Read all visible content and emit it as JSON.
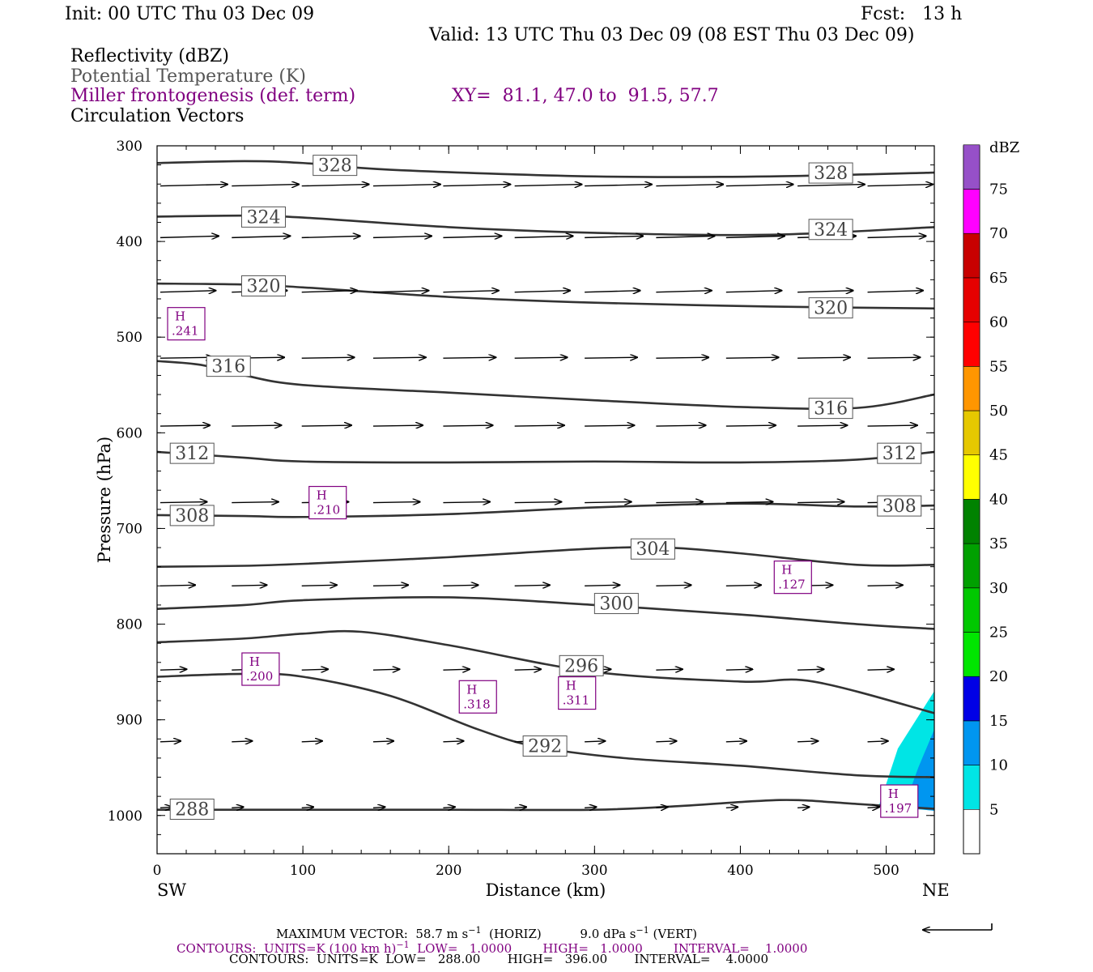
{
  "header": {
    "init": "Init: 00 UTC Thu 03 Dec 09",
    "fcst": "Fcst:   13 h",
    "valid": "Valid: 13 UTC Thu 03 Dec 09 (08 EST Thu 03 Dec 09)",
    "field1": "Reflectivity (dBZ)",
    "field2": "Potential Temperature (K)",
    "field3": "Miller frontogenesis (def. term)",
    "xy": "XY=  81.1, 47.0 to  91.5, 57.7",
    "field4": "Circulation Vectors"
  },
  "colors": {
    "theta": "#333333",
    "fronto": "#800080",
    "vectors": "#000000",
    "colorbar": [
      "#00e5e5",
      "#0096f0",
      "#0000e6",
      "#00e600",
      "#00c800",
      "#00a000",
      "#008200",
      "#ffff00",
      "#e6c800",
      "#ff9600",
      "#ff0000",
      "#e60000",
      "#c80000",
      "#ff00ff",
      "#9650c8"
    ]
  },
  "chart_data": {
    "type": "line",
    "title": "",
    "xlabel": "Distance (km)",
    "ylabel": "Pressure (hPa)",
    "xlim": [
      0,
      533
    ],
    "ylim": [
      1040,
      300
    ],
    "x_ticks": [
      "0",
      "100",
      "200",
      "300",
      "400",
      "500"
    ],
    "y_ticks": [
      "300",
      "400",
      "500",
      "600",
      "700",
      "800",
      "900",
      "1000"
    ],
    "x_end_labels": {
      "left": "SW",
      "right": "NE"
    },
    "theta_contours": [
      {
        "label": "328",
        "x": [
          0,
          60,
          100,
          160,
          300,
          420,
          533
        ],
        "p": [
          318,
          316,
          318,
          325,
          332,
          332,
          328
        ],
        "labels_at": [
          [
            122,
            320
          ],
          [
            462,
            328
          ]
        ]
      },
      {
        "label": "324",
        "x": [
          0,
          60,
          100,
          200,
          300,
          420,
          533
        ],
        "p": [
          374,
          373,
          375,
          385,
          391,
          393,
          385
        ],
        "labels_at": [
          [
            73,
            374
          ],
          [
            462,
            387
          ]
        ]
      },
      {
        "label": "320",
        "x": [
          0,
          60,
          100,
          200,
          300,
          420,
          533
        ],
        "p": [
          444,
          445,
          448,
          458,
          464,
          468,
          470
        ],
        "labels_at": [
          [
            73,
            446
          ],
          [
            462,
            469
          ]
        ]
      },
      {
        "label": "316",
        "x": [
          0,
          30,
          60,
          100,
          200,
          300,
          400,
          480,
          533
        ],
        "p": [
          525,
          529,
          540,
          550,
          558,
          566,
          573,
          574,
          560
        ],
        "labels_at": [
          [
            49,
            530
          ],
          [
            462,
            574
          ]
        ]
      },
      {
        "label": "312",
        "x": [
          0,
          60,
          100,
          200,
          300,
          400,
          480,
          533
        ],
        "p": [
          620,
          626,
          630,
          631,
          630,
          631,
          628,
          620
        ],
        "labels_at": [
          [
            24,
            621
          ],
          [
            509,
            621
          ]
        ]
      },
      {
        "label": "308",
        "x": [
          0,
          60,
          100,
          200,
          300,
          400,
          480,
          533
        ],
        "p": [
          686,
          687,
          688,
          685,
          678,
          674,
          677,
          676
        ],
        "labels_at": [
          [
            24,
            686
          ],
          [
            509,
            676
          ]
        ]
      },
      {
        "label": "304",
        "x": [
          0,
          60,
          100,
          200,
          300,
          350,
          400,
          480,
          533
        ],
        "p": [
          740,
          739,
          737,
          730,
          721,
          720,
          726,
          738,
          738
        ],
        "labels_at": [
          [
            340,
            721
          ]
        ]
      },
      {
        "label": "300",
        "x": [
          0,
          60,
          100,
          200,
          300,
          400,
          480,
          533
        ],
        "p": [
          784,
          780,
          775,
          772,
          780,
          790,
          800,
          805
        ],
        "labels_at": [
          [
            315,
            778
          ]
        ]
      },
      {
        "label": "296",
        "x": [
          0,
          60,
          100,
          140,
          200,
          300,
          400,
          450,
          533
        ],
        "p": [
          819,
          815,
          810,
          808,
          822,
          850,
          860,
          860,
          893
        ],
        "labels_at": [
          [
            291,
            843
          ]
        ]
      },
      {
        "label": "292",
        "x": [
          0,
          60,
          100,
          160,
          220,
          260,
          320,
          400,
          480,
          533
        ],
        "p": [
          855,
          852,
          855,
          875,
          910,
          928,
          940,
          948,
          958,
          960
        ],
        "labels_at": [
          [
            266,
            927
          ]
        ]
      },
      {
        "label": "288",
        "x": [
          0,
          60,
          100,
          200,
          300,
          360,
          410,
          440,
          480,
          533
        ],
        "p": [
          994,
          994,
          994,
          994,
          994,
          990,
          985,
          984,
          988,
          993
        ],
        "labels_at": [
          [
            24,
            993
          ]
        ]
      }
    ],
    "vectors_rows": [
      {
        "p": 342,
        "x": [
          0,
          49,
          97,
          146,
          194,
          243,
          291,
          340,
          388,
          437,
          485,
          533
        ],
        "u": 46
      },
      {
        "p": 396,
        "x": [
          0,
          49,
          97,
          146,
          194,
          243,
          291,
          340,
          388,
          437,
          485,
          533
        ],
        "u": 40
      },
      {
        "p": 453,
        "x": [
          0,
          49,
          97,
          146,
          194,
          243,
          291,
          340,
          388,
          437,
          485,
          533
        ],
        "u": 38
      },
      {
        "p": 522,
        "x": [
          0,
          49,
          97,
          146,
          194,
          243,
          291,
          340,
          388,
          437,
          485,
          533
        ],
        "u": 36
      },
      {
        "p": 593,
        "x": [
          0,
          49,
          97,
          146,
          194,
          243,
          291,
          340,
          388,
          437,
          485,
          533
        ],
        "u": 34
      },
      {
        "p": 673,
        "x": [
          0,
          49,
          97,
          146,
          194,
          243,
          291,
          340,
          388,
          437,
          485,
          533
        ],
        "u": 32
      },
      {
        "p": 760,
        "x": [
          0,
          49,
          97,
          146,
          194,
          243,
          291,
          340,
          388,
          437,
          485,
          533
        ],
        "u": 24
      },
      {
        "p": 848,
        "x": [
          0,
          49,
          97,
          146,
          194,
          243,
          291,
          340,
          388,
          437,
          485,
          533
        ],
        "u": 18
      },
      {
        "p": 923,
        "x": [
          0,
          49,
          97,
          146,
          194,
          243,
          291,
          340,
          388,
          437,
          485,
          533
        ],
        "u": 14
      },
      {
        "p": 992,
        "x": [
          0,
          49,
          97,
          146,
          194,
          243,
          291,
          340,
          388,
          437,
          485,
          533
        ],
        "u": 8
      }
    ],
    "fronto_maxima": [
      {
        "x": 20,
        "p": 486,
        "label": "H",
        "value": ".241"
      },
      {
        "x": 117,
        "p": 673,
        "label": "H",
        "value": ".210"
      },
      {
        "x": 71,
        "p": 847,
        "label": "H",
        "value": ".200"
      },
      {
        "x": 220,
        "p": 876,
        "label": "H",
        "value": ".318"
      },
      {
        "x": 288,
        "p": 872,
        "label": "H",
        "value": ".311"
      },
      {
        "x": 436,
        "p": 751,
        "label": "H",
        "value": ".127"
      },
      {
        "x": 509,
        "p": 985,
        "label": "H",
        "value": ".197"
      }
    ],
    "reflectivity_areas": [
      {
        "dbz": 5,
        "x": [
          495,
          508,
          533,
          533
        ],
        "p": [
          990,
          930,
          870,
          995
        ]
      },
      {
        "dbz": 10,
        "x": [
          512,
          522,
          533,
          533
        ],
        "p": [
          992,
          950,
          910,
          995
        ]
      }
    ],
    "colorbar": {
      "title": "dBZ",
      "levels": [
        "5",
        "10",
        "15",
        "20",
        "25",
        "30",
        "35",
        "40",
        "45",
        "50",
        "55",
        "60",
        "65",
        "70",
        "75"
      ]
    }
  },
  "footer": {
    "line1_a": "MAXIMUM VECTOR:  58.7 m s",
    "line1_b": "(HORIZ)",
    "line1_c": "9.0 dPa s",
    "line1_d": "(VERT)",
    "exp_m1": "−1",
    "line2": "CONTOURS:  UNITS=K (100 km h)",
    "line2_b": "LOW=   1.0000        HIGH=   1.0000        INTERVAL=    1.0000",
    "line3": "CONTOURS:  UNITS=K  LOW=   288.00       HIGH=   396.00       INTERVAL=    4.0000"
  }
}
